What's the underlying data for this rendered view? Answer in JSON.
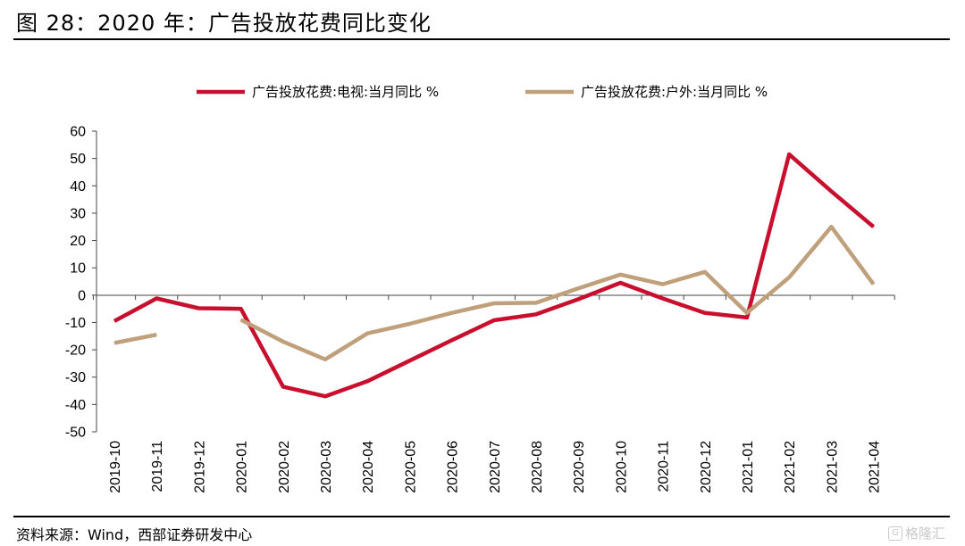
{
  "header": {
    "title": "图 28：2020 年：广告投放花费同比变化"
  },
  "footer": {
    "source": "资料来源：Wind，西部证券研发中心",
    "watermark": "格隆汇",
    "watermark_badge": "G"
  },
  "colors": {
    "tv": "#c8102e",
    "outdoor": "#c0a07a",
    "axis": "#444444"
  },
  "chart_data": {
    "type": "line",
    "title": "",
    "xlabel": "",
    "ylabel": "",
    "ylim": [
      -50,
      60
    ],
    "yticks": [
      60,
      50,
      40,
      30,
      20,
      10,
      0,
      -10,
      -20,
      -30,
      -40,
      -50
    ],
    "grid": false,
    "legend_position": "top",
    "categories": [
      "2019-10",
      "2019-11",
      "2019-12",
      "2020-01",
      "2020-02",
      "2020-03",
      "2020-04",
      "2020-05",
      "2020-06",
      "2020-07",
      "2020-08",
      "2020-09",
      "2020-10",
      "2020-11",
      "2020-12",
      "2021-01",
      "2021-02",
      "2021-03",
      "2021-04"
    ],
    "series": [
      {
        "name": "广告投放花费:电视:当月同比 %",
        "color": "#c8102e",
        "values": [
          -9.5,
          -1.2,
          -4.8,
          -5.0,
          -33.5,
          -37.0,
          -31.5,
          -24.0,
          -16.5,
          -9.2,
          -7.0,
          -1.5,
          4.5,
          -1.2,
          -6.5,
          -8.2,
          51.5,
          38.0,
          25.0
        ]
      },
      {
        "name": "广告投放花费:户外:当月同比 %",
        "color": "#c0a07a",
        "values": [
          -17.5,
          -14.5,
          null,
          -9.0,
          -17.0,
          -23.5,
          -14.0,
          -10.5,
          -6.5,
          -3.0,
          -2.8,
          2.5,
          7.5,
          4.0,
          8.5,
          -6.5,
          6.5,
          25.0,
          4.0
        ]
      }
    ]
  }
}
